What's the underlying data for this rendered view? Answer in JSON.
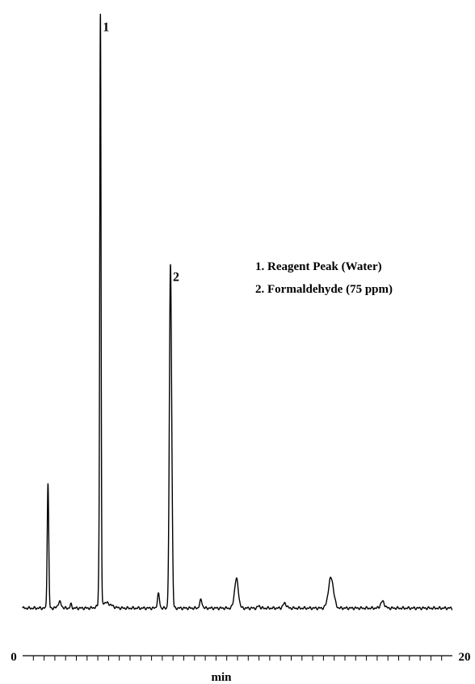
{
  "chart_data": {
    "type": "line",
    "title": "",
    "xlabel": "min",
    "ylabel": "",
    "xlim": [
      0,
      20
    ],
    "ylim": [
      0,
      100
    ],
    "x_tick_labels": [
      "0",
      "20"
    ],
    "minor_tick_step": 0.5,
    "line_color": "#000000",
    "baseline": 2.5,
    "series": [
      {
        "peaks": [
          {
            "x": 1.18,
            "height": 20.5,
            "width": 0.035
          },
          {
            "x": 1.72,
            "height": 1.0,
            "width": 0.08
          },
          {
            "x": 2.25,
            "height": 0.6,
            "width": 0.04
          },
          {
            "x": 3.55,
            "height": 4.5,
            "width": 0.025
          },
          {
            "x": 3.62,
            "height": 97.0,
            "width": 0.03
          },
          {
            "x": 3.85,
            "height": 0.9,
            "width": 0.25
          },
          {
            "x": 6.32,
            "height": 2.3,
            "width": 0.05
          },
          {
            "x": 6.88,
            "height": 56.0,
            "width": 0.05
          },
          {
            "x": 6.96,
            "height": 6.0,
            "width": 0.035
          },
          {
            "x": 8.3,
            "height": 1.3,
            "width": 0.06
          },
          {
            "x": 9.95,
            "height": 4.8,
            "width": 0.09
          },
          {
            "x": 11.0,
            "height": 0.4,
            "width": 0.05
          },
          {
            "x": 12.2,
            "height": 0.8,
            "width": 0.08
          },
          {
            "x": 14.35,
            "height": 5.0,
            "width": 0.12
          },
          {
            "x": 16.75,
            "height": 1.1,
            "width": 0.09
          }
        ]
      }
    ],
    "peak_labels": [
      {
        "text": "1",
        "x": 3.62,
        "y": 97.0
      },
      {
        "text": "2",
        "x": 6.88,
        "y": 56.0
      }
    ],
    "legend": {
      "position": "top-right",
      "entries": [
        "1.  Reagent Peak (Water)",
        "2.  Formaldehyde (75 ppm)"
      ]
    }
  }
}
